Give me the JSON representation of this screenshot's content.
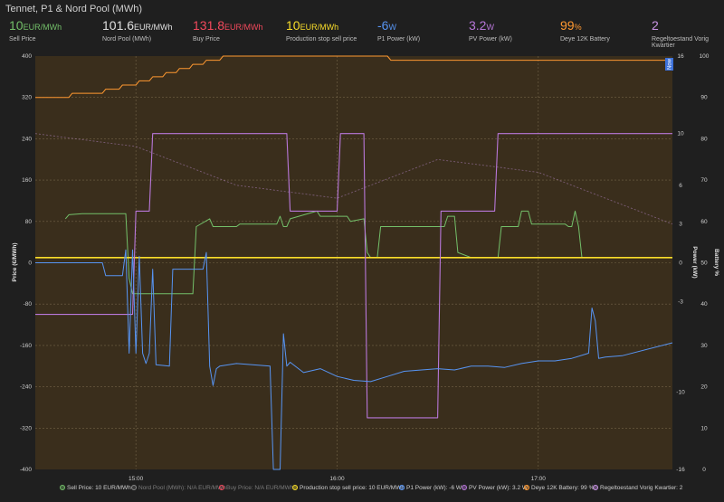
{
  "panel": {
    "title": "Tennet, P1 & Nord Pool (MWh)"
  },
  "stats": [
    {
      "value": "10",
      "unit": "EUR/MWh",
      "label": "Sell Price",
      "color": "#73bf69"
    },
    {
      "value": "101.6",
      "unit": "EUR/MWh",
      "label": "Nord Pool (MWh)",
      "color": "#e0e0e0"
    },
    {
      "value": "131.8",
      "unit": "EUR/MWh",
      "label": "Buy Price",
      "color": "#f2495c"
    },
    {
      "value": "10",
      "unit": "EUR/MWh",
      "label": "Production stop sell price",
      "color": "#fade2a"
    },
    {
      "value": "-6",
      "unit": "W",
      "label": "P1 Power (kW)",
      "color": "#5794f2"
    },
    {
      "value": "3.2",
      "unit": "W",
      "label": "PV Power (kW)",
      "color": "#b877d9"
    },
    {
      "value": "99",
      "unit": "%",
      "label": "Deye 12K Battery",
      "color": "#ff9830"
    },
    {
      "value": "2",
      "unit": "",
      "label": "Regeltoestand Vorig Kwartier",
      "color": "#ca95e5"
    }
  ],
  "colors": {
    "sell": "#73bf69",
    "nordpool": "#8a8a8a",
    "buy": "#f2495c",
    "stop": "#fade2a",
    "p1": "#5794f2",
    "pv": "#b877d9",
    "battery": "#ff9830",
    "regel": "#ca95e5",
    "plot_bg": "#3a2e1c",
    "page_bg": "#1f1f1f"
  },
  "legend": [
    {
      "text": "Sell Price: 10 EUR/MWh",
      "color": "#73bf69",
      "dim": false
    },
    {
      "text": "Nord Pool (MWh): N/A EUR/MWh",
      "color": "#8a8a8a",
      "dim": true
    },
    {
      "text": "Buy Price: N/A EUR/MWh",
      "color": "#f2495c",
      "dim": true
    },
    {
      "text": "Production stop sell price: 10 EUR/MWh",
      "color": "#fade2a",
      "dim": false
    },
    {
      "text": "P1 Power (kW): -6 W",
      "color": "#5794f2",
      "dim": false
    },
    {
      "text": "PV Power (kW): 3.2 W",
      "color": "#b877d9",
      "dim": false
    },
    {
      "text": "Deye 12K Battery: 99 %",
      "color": "#ff9830",
      "dim": false
    },
    {
      "text": "Regeltoestand Vorig Kwartier: 2",
      "color": "#ca95e5",
      "dim": false
    }
  ],
  "chart_data": {
    "type": "line",
    "x_range": [
      "14:30",
      "17:40"
    ],
    "x_ticks": [
      "15:00",
      "16:00",
      "17:00"
    ],
    "now_label": "Now",
    "axes": {
      "price": {
        "label": "Price (€/MWh)",
        "range": [
          -400,
          400
        ],
        "ticks": [
          -400,
          -320,
          -240,
          -160,
          -80,
          0,
          80,
          160,
          240,
          320,
          400
        ]
      },
      "power": {
        "label": "Power (kW)",
        "range": [
          -16,
          16
        ],
        "ticks": [
          -16,
          -10,
          -3,
          0,
          3,
          6,
          10,
          16
        ]
      },
      "battery": {
        "label": "Battery %",
        "range": [
          0,
          100
        ],
        "ticks": [
          0,
          10,
          20,
          30,
          40,
          50,
          60,
          70,
          80,
          90,
          100
        ]
      }
    },
    "grid": true,
    "series": [
      {
        "name": "Production stop sell price",
        "axis": "price",
        "color": "#fade2a",
        "x": [
          "14:30",
          "17:40"
        ],
        "y": [
          10,
          10
        ]
      },
      {
        "name": "Sell Price",
        "axis": "price",
        "color": "#73bf69",
        "x": [
          "14:39",
          "14:40",
          "14:44",
          "14:48",
          "14:57",
          "14:58",
          "14:59",
          "15:03",
          "15:04",
          "15:10",
          "15:14",
          "15:17",
          "15:18",
          "15:22",
          "15:23",
          "15:30",
          "15:31",
          "15:40",
          "15:42",
          "15:43",
          "15:44",
          "15:45",
          "15:46",
          "15:54",
          "15:55",
          "16:03",
          "16:04",
          "16:08",
          "16:09",
          "16:10",
          "16:11",
          "16:12",
          "16:13",
          "16:20",
          "16:22",
          "16:32",
          "16:33",
          "16:35",
          "16:36",
          "16:40",
          "16:42",
          "16:48",
          "16:49",
          "16:54",
          "16:55",
          "16:57",
          "16:58",
          "17:00",
          "17:01",
          "17:08",
          "17:09",
          "17:10",
          "17:11",
          "17:12",
          "17:13",
          "17:18"
        ],
        "y": [
          85,
          93,
          95,
          95,
          95,
          -30,
          -60,
          -60,
          -60,
          -60,
          -60,
          -60,
          70,
          85,
          70,
          70,
          75,
          75,
          75,
          90,
          70,
          70,
          85,
          100,
          90,
          90,
          80,
          85,
          20,
          10,
          10,
          10,
          70,
          70,
          70,
          70,
          90,
          90,
          20,
          10,
          10,
          10,
          70,
          70,
          100,
          100,
          75,
          75,
          75,
          75,
          70,
          70,
          100,
          70,
          10,
          10
        ]
      },
      {
        "name": "P1 Power (kW)",
        "axis": "power",
        "color": "#5794f2",
        "x": [
          "14:30",
          "14:50",
          "14:51",
          "14:56",
          "14:57",
          "14:58",
          "14:59",
          "15:00",
          "15:01",
          "15:02",
          "15:03",
          "15:04",
          "15:05",
          "15:06",
          "15:10",
          "15:11",
          "15:20",
          "15:21",
          "15:22",
          "15:23",
          "15:24",
          "15:25",
          "15:30",
          "15:40",
          "15:41",
          "15:42",
          "15:43",
          "15:44",
          "15:45",
          "15:46",
          "15:50",
          "15:55",
          "16:00",
          "16:05",
          "16:10",
          "16:15",
          "16:20",
          "16:30",
          "16:35",
          "16:40",
          "16:45",
          "16:50",
          "16:55",
          "17:00",
          "17:05",
          "17:10",
          "17:15",
          "17:16",
          "17:17",
          "17:18",
          "17:20",
          "17:25",
          "17:40"
        ],
        "y": [
          0,
          0,
          -1,
          -1,
          1,
          -7,
          1,
          -7,
          0.5,
          -7,
          -7.8,
          -7,
          -0.5,
          -7.9,
          -8,
          -0.5,
          -0.5,
          0.8,
          -8,
          -9.5,
          -8.2,
          -8,
          -7.8,
          -8,
          -16,
          -16,
          -16,
          -5.5,
          -8,
          -7.7,
          -8.5,
          -8.2,
          -8.8,
          -9.1,
          -9.2,
          -8.8,
          -8.4,
          -8.2,
          -8.3,
          -8,
          -8,
          -8.1,
          -7.8,
          -7.6,
          -7.6,
          -7.4,
          -7,
          -3.5,
          -4.5,
          -7.4,
          -7.3,
          -7.2,
          -6.2
        ]
      },
      {
        "name": "PV Power (kW)",
        "axis": "power",
        "color": "#b877d9",
        "x": [
          "14:30",
          "14:59",
          "15:00",
          "15:04",
          "15:05",
          "15:45",
          "15:46",
          "16:00",
          "16:01",
          "16:08",
          "16:09",
          "16:30",
          "16:31",
          "16:47",
          "16:48",
          "17:40"
        ],
        "y": [
          -4,
          -4,
          4,
          4,
          10,
          10,
          4,
          4,
          10,
          10,
          -12,
          -12,
          4,
          4,
          10,
          10
        ]
      },
      {
        "name": "Deye 12K Battery",
        "axis": "battery",
        "color": "#ff9830",
        "x": [
          "14:30",
          "14:40",
          "14:41",
          "14:50",
          "14:51",
          "14:55",
          "14:56",
          "15:00",
          "15:01",
          "15:04",
          "15:05",
          "15:08",
          "15:09",
          "15:12",
          "15:13",
          "15:16",
          "15:17",
          "15:20",
          "15:21",
          "15:25",
          "15:26",
          "15:30",
          "15:31",
          "15:34",
          "15:35",
          "15:40",
          "15:41",
          "16:15",
          "16:16",
          "16:55",
          "16:56",
          "17:40"
        ],
        "y": [
          90,
          90,
          91,
          91,
          92,
          92,
          93,
          93,
          94,
          94,
          95,
          95,
          96,
          96,
          97,
          97,
          98,
          98,
          99,
          99,
          100,
          100,
          100,
          100,
          100,
          100,
          100,
          100,
          99,
          99,
          99,
          99
        ]
      },
      {
        "name": "Regeltoestand Vorig Kwartier",
        "axis": "power",
        "color": "#ca95e5",
        "x": [
          "14:30",
          "15:00",
          "15:30",
          "16:00",
          "16:30",
          "17:00",
          "17:40"
        ],
        "y": [
          10,
          9,
          6,
          5,
          8,
          7,
          3
        ]
      }
    ]
  }
}
